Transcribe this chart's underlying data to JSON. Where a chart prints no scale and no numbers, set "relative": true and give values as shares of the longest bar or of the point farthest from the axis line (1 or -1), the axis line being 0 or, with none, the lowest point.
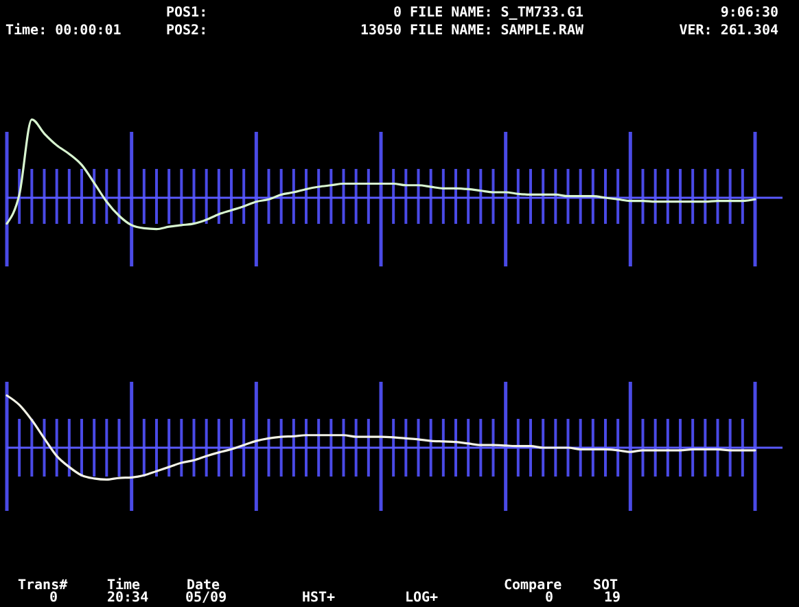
{
  "chart_data": [
    {
      "type": "line",
      "relative": true,
      "grid": true,
      "ref_lines": [
        {
          "axis": "y",
          "value": 0,
          "color": "#5a5aff"
        }
      ],
      "categories": [
        null,
        null,
        null,
        null,
        null,
        null,
        null,
        null,
        null,
        null,
        null,
        null,
        null,
        null,
        null,
        null,
        null,
        null,
        null,
        null,
        null,
        null,
        null,
        null,
        null,
        null,
        null,
        null,
        null,
        null,
        null,
        null,
        null,
        null,
        null,
        null,
        null,
        null,
        null,
        null,
        null,
        null,
        null,
        null,
        null,
        null,
        null,
        null,
        null,
        null,
        null,
        null,
        null,
        null,
        null,
        null,
        null,
        null,
        null,
        null,
        null
      ],
      "series": [
        {
          "color": "#d8f5d0",
          "values": [
            -0.33,
            0.04,
            1,
            0.82,
            0.67,
            0.56,
            0.42,
            0.19,
            -0.05,
            -0.23,
            -0.35,
            -0.39,
            -0.4,
            -0.37,
            -0.35,
            -0.33,
            -0.28,
            -0.21,
            -0.16,
            -0.11,
            -0.05,
            -0.02,
            0.04,
            0.07,
            0.11,
            0.14,
            0.16,
            0.18,
            0.18,
            0.18,
            0.18,
            0.18,
            0.16,
            0.16,
            0.14,
            0.12,
            0.12,
            0.11,
            0.09,
            0.07,
            0.07,
            0.05,
            0.04,
            0.04,
            0.04,
            0.02,
            0.02,
            0.02,
            0,
            -0.02,
            -0.04,
            -0.04,
            -0.05,
            -0.05,
            -0.05,
            -0.05,
            -0.05,
            -0.04,
            -0.04,
            -0.04,
            -0.02
          ]
        }
      ],
      "annotations": [
        "POS1:",
        "0 FILE NAME: S_TM733.G1",
        "9:06:30",
        "Time: 00:00:01",
        "POS2:",
        "13050 FILE NAME: SAMPLE.RAW",
        "VER: 261.304"
      ]
    },
    {
      "type": "line",
      "relative": true,
      "grid": true,
      "ref_lines": [
        {
          "axis": "y",
          "value": 0,
          "color": "#5a5aff"
        }
      ],
      "categories": [
        null,
        null,
        null,
        null,
        null,
        null,
        null,
        null,
        null,
        null,
        null,
        null,
        null,
        null,
        null,
        null,
        null,
        null,
        null,
        null,
        null,
        null,
        null,
        null,
        null,
        null,
        null,
        null,
        null,
        null,
        null,
        null,
        null,
        null,
        null,
        null,
        null,
        null,
        null,
        null,
        null,
        null,
        null,
        null,
        null,
        null,
        null,
        null,
        null,
        null,
        null,
        null,
        null,
        null,
        null,
        null,
        null,
        null,
        null,
        null,
        null
      ],
      "series": [
        {
          "color": "#f2f2e6",
          "values": [
            1,
            0.82,
            0.53,
            0.18,
            -0.16,
            -0.37,
            -0.53,
            -0.59,
            -0.61,
            -0.58,
            -0.57,
            -0.53,
            -0.45,
            -0.37,
            -0.29,
            -0.24,
            -0.16,
            -0.09,
            -0.03,
            0.05,
            0.13,
            0.18,
            0.21,
            0.22,
            0.24,
            0.24,
            0.24,
            0.24,
            0.21,
            0.21,
            0.21,
            0.2,
            0.18,
            0.16,
            0.13,
            0.12,
            0.11,
            0.08,
            0.05,
            0.05,
            0.04,
            0.03,
            0.03,
            0,
            0,
            0,
            -0.03,
            -0.03,
            -0.03,
            -0.05,
            -0.08,
            -0.05,
            -0.05,
            -0.05,
            -0.05,
            -0.03,
            -0.03,
            -0.03,
            -0.05,
            -0.05,
            -0.05
          ]
        }
      ],
      "annotations": [
        "Trans#",
        "0",
        "Time",
        "20:34",
        "Date",
        "05/09",
        "HST+",
        "LOG+",
        "Compare",
        "0",
        "SOT",
        "19"
      ]
    }
  ]
}
